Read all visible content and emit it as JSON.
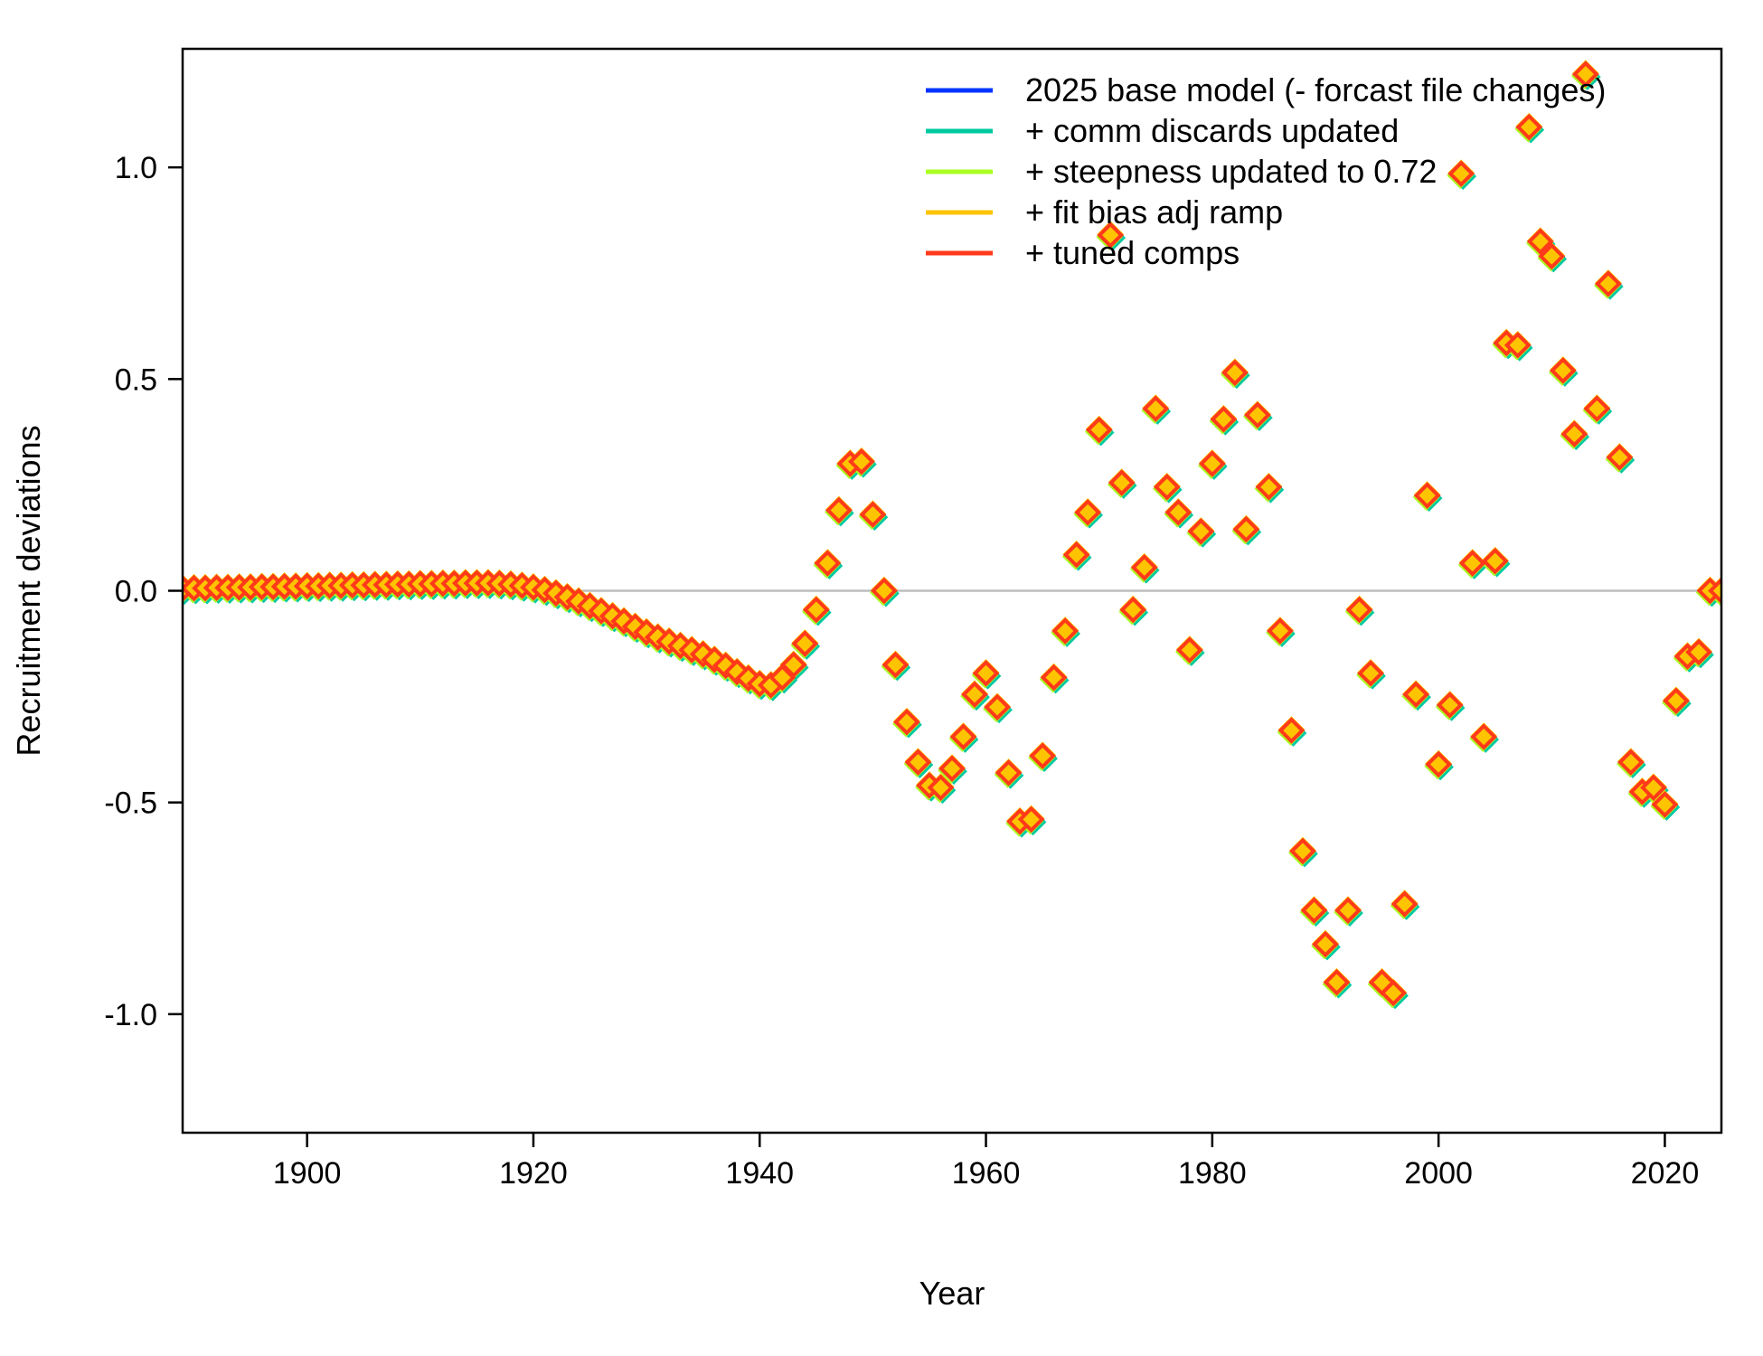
{
  "chart_data": {
    "type": "scatter",
    "xlabel": "Year",
    "ylabel": "Recruitment deviations",
    "xlim": [
      1889,
      2025
    ],
    "ylim": [
      -1.28,
      1.28
    ],
    "xticks": [
      1900,
      1920,
      1940,
      1960,
      1980,
      2000,
      2020
    ],
    "yticks": [
      -1.0,
      -0.5,
      0.0,
      0.5,
      1.0
    ],
    "ytick_labels": [
      "-1.0",
      "-0.5",
      "0.0",
      "0.5",
      "1.0"
    ],
    "reference_line": {
      "y": 0,
      "color": "#bdbdbd"
    },
    "grid": false,
    "legend_position": "top-right",
    "series": [
      {
        "name": "2025 base model (- forcast file changes)",
        "color": "#0033ff"
      },
      {
        "name": "+ comm discards updated",
        "color": "#00c8a0"
      },
      {
        "name": "+ steepness updated to 0.72",
        "color": "#aaff22"
      },
      {
        "name": "+ fit bias adj ramp",
        "color": "#ffc400"
      },
      {
        "name": "+ tuned comps",
        "color": "#ff3a1a"
      }
    ],
    "x": [
      1889,
      1890,
      1891,
      1892,
      1893,
      1894,
      1895,
      1896,
      1897,
      1898,
      1899,
      1900,
      1901,
      1902,
      1903,
      1904,
      1905,
      1906,
      1907,
      1908,
      1909,
      1910,
      1911,
      1912,
      1913,
      1914,
      1915,
      1916,
      1917,
      1918,
      1919,
      1920,
      1921,
      1922,
      1923,
      1924,
      1925,
      1926,
      1927,
      1928,
      1929,
      1930,
      1931,
      1932,
      1933,
      1934,
      1935,
      1936,
      1937,
      1938,
      1939,
      1940,
      1941,
      1942,
      1943,
      1944,
      1945,
      1946,
      1947,
      1948,
      1949,
      1950,
      1951,
      1952,
      1953,
      1954,
      1955,
      1956,
      1957,
      1958,
      1959,
      1960,
      1961,
      1962,
      1963,
      1964,
      1965,
      1966,
      1967,
      1968,
      1969,
      1970,
      1971,
      1972,
      1973,
      1974,
      1975,
      1976,
      1977,
      1978,
      1979,
      1980,
      1981,
      1982,
      1983,
      1984,
      1985,
      1986,
      1987,
      1988,
      1989,
      1990,
      1991,
      1992,
      1993,
      1994,
      1995,
      1996,
      1997,
      1998,
      1999,
      2000,
      2001,
      2002,
      2003,
      2004,
      2005,
      2006,
      2007,
      2008,
      2009,
      2010,
      2011,
      2012,
      2013,
      2014,
      2015,
      2016,
      2017,
      2018,
      2019,
      2020,
      2021,
      2022,
      2023,
      2024,
      2025
    ],
    "y": [
      0.005,
      0.006,
      0.006,
      0.007,
      0.007,
      0.008,
      0.008,
      0.009,
      0.009,
      0.01,
      0.01,
      0.011,
      0.011,
      0.012,
      0.012,
      0.013,
      0.013,
      0.014,
      0.014,
      0.015,
      0.015,
      0.016,
      0.016,
      0.017,
      0.017,
      0.018,
      0.018,
      0.018,
      0.017,
      0.015,
      0.012,
      0.008,
      0.002,
      -0.006,
      -0.015,
      -0.025,
      -0.036,
      -0.048,
      -0.06,
      -0.072,
      -0.085,
      -0.098,
      -0.11,
      -0.12,
      -0.13,
      -0.14,
      -0.15,
      -0.163,
      -0.177,
      -0.192,
      -0.207,
      -0.22,
      -0.223,
      -0.205,
      -0.175,
      -0.125,
      -0.045,
      0.065,
      0.19,
      0.3,
      0.305,
      0.18,
      0.0,
      -0.175,
      -0.31,
      -0.405,
      -0.46,
      -0.465,
      -0.42,
      -0.345,
      -0.245,
      -0.195,
      -0.275,
      -0.43,
      -0.545,
      -0.54,
      -0.39,
      -0.205,
      -0.095,
      0.085,
      0.185,
      0.38,
      0.84,
      0.255,
      -0.045,
      0.055,
      0.43,
      0.245,
      0.185,
      -0.14,
      0.14,
      0.3,
      0.405,
      0.515,
      0.145,
      0.415,
      0.245,
      -0.095,
      -0.33,
      -0.615,
      -0.755,
      -0.835,
      -0.925,
      -0.755,
      -0.045,
      -0.195,
      -0.925,
      -0.95,
      -0.74,
      -0.245,
      0.225,
      -0.41,
      -0.27,
      0.985,
      0.065,
      -0.345,
      0.07,
      0.585,
      0.58,
      1.095,
      0.825,
      0.79,
      0.52,
      0.37,
      1.22,
      0.43,
      0.725,
      0.315,
      -0.405,
      -0.475,
      -0.465,
      -0.505,
      -0.26,
      -0.155,
      -0.145,
      0.0,
      0.0
    ]
  }
}
